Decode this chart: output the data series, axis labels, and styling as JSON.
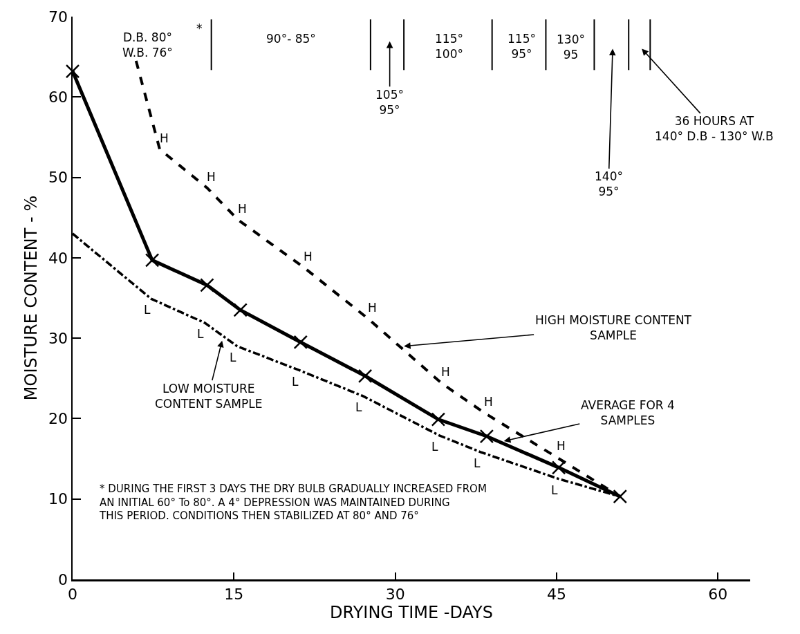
{
  "chart_data": {
    "type": "line",
    "xlabel": "DRYING TIME -DAYS",
    "ylabel": "MOISTURE CONTENT - %",
    "xlim": [
      0,
      63
    ],
    "xticks": [
      0,
      15,
      30,
      45,
      60
    ],
    "ylim": [
      0,
      70
    ],
    "yticks": [
      0,
      10,
      20,
      30,
      40,
      50,
      60,
      70
    ],
    "grid": false,
    "series": [
      {
        "color": "#000000",
        "line_style": "dashed",
        "marker": "none",
        "x": [
          5.9,
          8.1,
          12.5,
          15.4,
          21.5,
          27.5,
          34.3,
          38.3,
          45.0,
          50.9
        ],
        "values": [
          64.5,
          53.5,
          48.7,
          44.7,
          38.8,
          32.4,
          24.4,
          20.7,
          15.2,
          10.3
        ],
        "value_labels": [
          null,
          "H",
          "H",
          "H",
          "H",
          "H",
          "H",
          "H",
          "H",
          null
        ]
      },
      {
        "color": "#000000",
        "line_style": "solid",
        "marker": "cross",
        "x": [
          0,
          7.4,
          12.5,
          15.6,
          21.2,
          27.2,
          34.0,
          38.5,
          45.2,
          50.9
        ],
        "values": [
          63.2,
          39.7,
          36.6,
          33.5,
          29.5,
          25.3,
          19.9,
          17.8,
          13.9,
          10.3
        ]
      },
      {
        "color": "#000000",
        "line_style": "dashdot",
        "marker": "none",
        "x": [
          0,
          7.3,
          12.3,
          15.3,
          21.1,
          27.0,
          34.1,
          38.0,
          45.2,
          50.9
        ],
        "values": [
          43.0,
          34.9,
          31.9,
          29.0,
          26.0,
          22.8,
          17.9,
          15.8,
          12.5,
          10.3
        ],
        "value_labels": [
          null,
          "L",
          "L",
          "L",
          "L",
          "L",
          "L",
          "L",
          "L",
          null
        ]
      }
    ],
    "ref_lines": [
      {
        "axis": "x",
        "value": 12.9
      },
      {
        "axis": "x",
        "value": 27.7
      },
      {
        "axis": "x",
        "value": 30.8
      },
      {
        "axis": "x",
        "value": 39.0
      },
      {
        "axis": "x",
        "value": 44.0
      },
      {
        "axis": "x",
        "value": 48.5
      },
      {
        "axis": "x",
        "value": 51.7
      },
      {
        "axis": "x",
        "value": 53.7
      }
    ],
    "annotations": [
      "D.B. 80°\nW.B. 76°",
      "*",
      "90°- 85°",
      "105°\n95°",
      "115°\n100°",
      "115°\n95°",
      "130°\n95",
      "140°\n95°",
      "36 HOURS AT\n140° D.B - 130° W.B",
      {
        "text": "HIGH MOISTURE CONTENT\nSAMPLE",
        "x": 30.8,
        "y": 29.0
      },
      {
        "text": "LOW MOISTURE\nCONTENT SAMPLE",
        "x": 13.9,
        "y": 29.7
      },
      {
        "text": "AVERAGE FOR 4\nSAMPLES",
        "x": 40.1,
        "y": 17.2
      },
      "* DURING THE FIRST 3 DAYS THE DRY BULB GRADUALLY INCREASED FROM\nAN INITIAL 60° To 80°. A 4° DEPRESSION WAS MAINTAINED DURING\nTHIS PERIOD. CONDITIONS THEN STABILIZED AT 80° AND 76°"
    ]
  }
}
